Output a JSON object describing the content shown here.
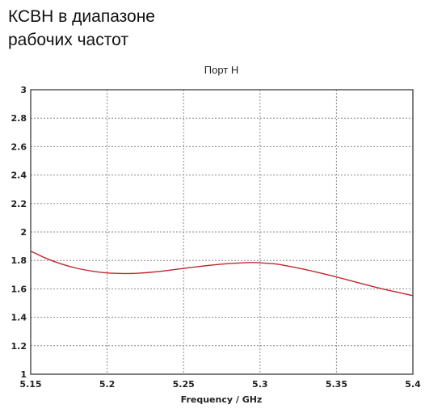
{
  "heading": "КСВН в диапазоне\nрабочих частот",
  "chart_data": {
    "type": "line",
    "title": "Порт H",
    "xlabel": "Frequency / GHz",
    "ylabel": "",
    "xlim": [
      5.15,
      5.4
    ],
    "ylim": [
      1,
      3
    ],
    "xticks": [
      "5.15",
      "5.2",
      "5.25",
      "5.3",
      "5.35",
      "5.4"
    ],
    "yticks": [
      "1",
      "1.2",
      "1.4",
      "1.6",
      "1.8",
      "2",
      "2.2",
      "2.4",
      "2.6",
      "2.8",
      "3"
    ],
    "grid": true,
    "series": [
      {
        "color": "#c0282d",
        "x": [
          5.15,
          5.16,
          5.17,
          5.18,
          5.19,
          5.2,
          5.21,
          5.215,
          5.22,
          5.23,
          5.24,
          5.25,
          5.26,
          5.27,
          5.28,
          5.29,
          5.295,
          5.3,
          5.31,
          5.32,
          5.33,
          5.34,
          5.35,
          5.36,
          5.37,
          5.38,
          5.39,
          5.4
        ],
        "y": [
          1.865,
          1.815,
          1.775,
          1.745,
          1.725,
          1.712,
          1.708,
          1.708,
          1.71,
          1.718,
          1.73,
          1.744,
          1.757,
          1.769,
          1.778,
          1.784,
          1.785,
          1.783,
          1.775,
          1.757,
          1.735,
          1.71,
          1.684,
          1.655,
          1.627,
          1.6,
          1.576,
          1.552
        ]
      }
    ]
  }
}
